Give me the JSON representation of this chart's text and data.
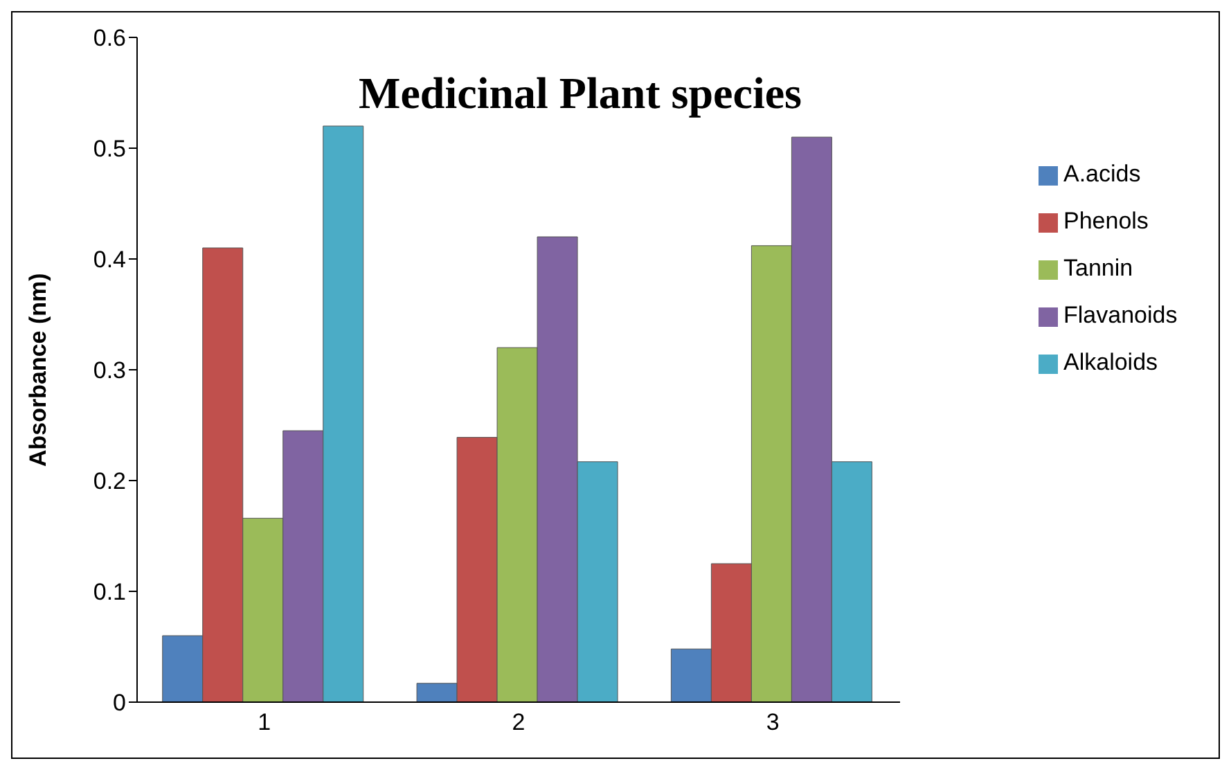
{
  "chart_data": {
    "type": "bar",
    "title": "Medicinal Plant species",
    "ylabel": "Absorbance (nm)",
    "categories": [
      "1",
      "2",
      "3"
    ],
    "series": [
      {
        "name": "A.acids",
        "color": "#4f81bd",
        "values": [
          0.06,
          0.017,
          0.048
        ]
      },
      {
        "name": "Phenols",
        "color": "#c0504d",
        "values": [
          0.41,
          0.239,
          0.125
        ]
      },
      {
        "name": "Tannin",
        "color": "#9bbb59",
        "values": [
          0.166,
          0.32,
          0.412
        ]
      },
      {
        "name": "Flavanoids",
        "color": "#8064a2",
        "values": [
          0.245,
          0.42,
          0.51
        ]
      },
      {
        "name": "Alkaloids",
        "color": "#4bacc6",
        "values": [
          0.52,
          0.217,
          0.217
        ]
      }
    ],
    "ylim": [
      0,
      0.6
    ],
    "yticks": [
      0,
      0.1,
      0.2,
      0.3,
      0.4,
      0.5,
      0.6
    ],
    "grid": false,
    "legend": "right"
  }
}
